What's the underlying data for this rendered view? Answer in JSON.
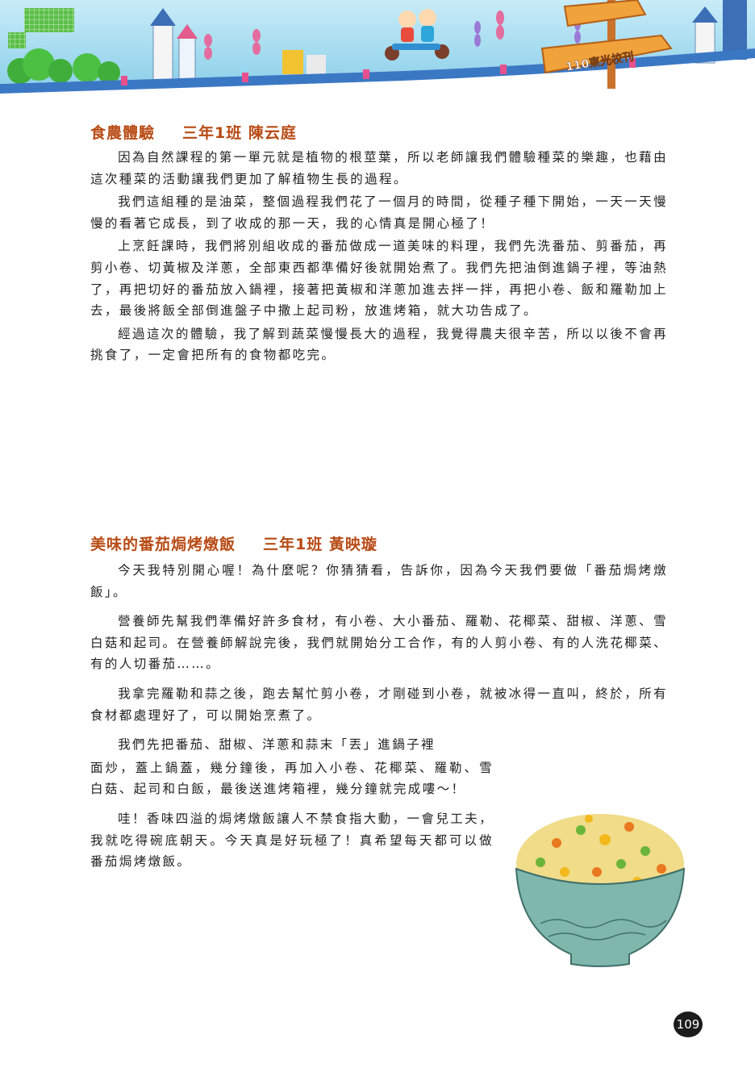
{
  "header": {
    "badge_text": "110東光校刊"
  },
  "articles": [
    {
      "title": "食農體驗",
      "author": "三年1班 陳云庭",
      "paragraphs": [
        "因為自然課程的第一單元就是植物的根莖葉，所以老師讓我們體驗種菜的樂趣，也藉由這次種菜的活動讓我們更加了解植物生長的過程。",
        "我們這組種的是油菜，整個過程我們花了一個月的時間，從種子種下開始，一天一天慢慢的看著它成長，到了收成的那一天，我的心情真是開心極了！",
        "上烹飪課時，我們將別組收成的番茄做成一道美味的料理，我們先洗番茄、剪番茄，再剪小卷、切黃椒及洋蔥，全部東西都準備好後就開始煮了。我們先把油倒進鍋子裡，等油熱了，再把切好的番茄放入鍋裡，接著把黃椒和洋蔥加進去拌一拌，再把小卷、飯和羅勒加上去，最後將飯全部倒進盤子中撒上起司粉，放進烤箱，就大功告成了。",
        "經過這次的體驗，我了解到蔬菜慢慢長大的過程，我覺得農夫很辛苦，所以以後不會再挑食了，一定會把所有的食物都吃完。"
      ]
    },
    {
      "title": "美味的番茄焗烤燉飯",
      "author": "三年1班 黃映璇",
      "paragraphs": [
        "今天我特別開心喔！為什麼呢？你猜猜看，告訴你，因為今天我們要做「番茄焗烤燉飯」。",
        "營養師先幫我們準備好許多食材，有小卷、大小番茄、羅勒、花椰菜、甜椒、洋蔥、雪白菇和起司。在營養師解說完後，我們就開始分工合作，有的人剪小卷、有的人洗花椰菜、有的人切番茄……。",
        "我拿完羅勒和蒜之後，跑去幫忙剪小卷，才剛碰到小卷，就被冰得一直叫，終於，所有食材都處理好了，可以開始烹煮了。"
      ],
      "wrap_paragraph_first_line": "我們先把番茄、甜椒、洋蔥和蒜末「丟」進鍋子裡",
      "wrap_paragraph_rest": "面炒，蓋上鍋蓋，幾分鐘後，再加入小卷、花椰菜、羅勒、雪白菇、起司和白飯，最後送進烤箱裡，幾分鐘就完成嘍～！",
      "final_paragraph": "哇！香味四溢的焗烤燉飯讓人不禁食指大動，一會兒工夫，我就吃得碗底朝天。今天真是好玩極了！真希望每天都可以做番茄焗烤燉飯。"
    }
  ],
  "illustration": {
    "icon": "fried-rice-bowl",
    "bowl_color": "#7fb7ad",
    "rice_color": "#f1dc8a"
  },
  "page_number": "109",
  "colors": {
    "title": "#b84a14",
    "sky": "#9fd9ee",
    "stripe_blue": "#3b78c4",
    "sign_orange": "#e98b2f"
  }
}
